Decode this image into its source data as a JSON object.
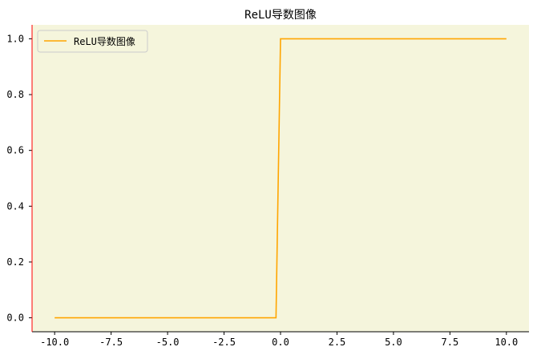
{
  "chart_data": {
    "type": "line",
    "title": "ReLU导数图像",
    "xlabel": "",
    "ylabel": "",
    "xlim": [
      -11.0,
      11.0
    ],
    "ylim": [
      -0.05,
      1.05
    ],
    "x_ticks": [
      -10.0,
      -7.5,
      -5.0,
      -2.5,
      0.0,
      2.5,
      5.0,
      7.5,
      10.0
    ],
    "x_tick_labels": [
      "-10.0",
      "-7.5",
      "-5.0",
      "-2.5",
      "0.0",
      "2.5",
      "5.0",
      "7.5",
      "10.0"
    ],
    "y_ticks": [
      0.0,
      0.2,
      0.4,
      0.6,
      0.8,
      1.0
    ],
    "y_tick_labels": [
      "0.0",
      "0.2",
      "0.4",
      "0.6",
      "0.8",
      "1.0"
    ],
    "grid": false,
    "legend_position": "top-left",
    "series": [
      {
        "name": "ReLU导数图像",
        "color": "#ffa500",
        "x": [
          -10.0,
          -0.2,
          0.0,
          10.0
        ],
        "y": [
          0.0,
          0.0,
          1.0,
          1.0
        ]
      }
    ],
    "colors": {
      "plot_background": "#f5f5dc",
      "left_spine": "#ff0000",
      "bottom_spine": "#000000"
    }
  }
}
